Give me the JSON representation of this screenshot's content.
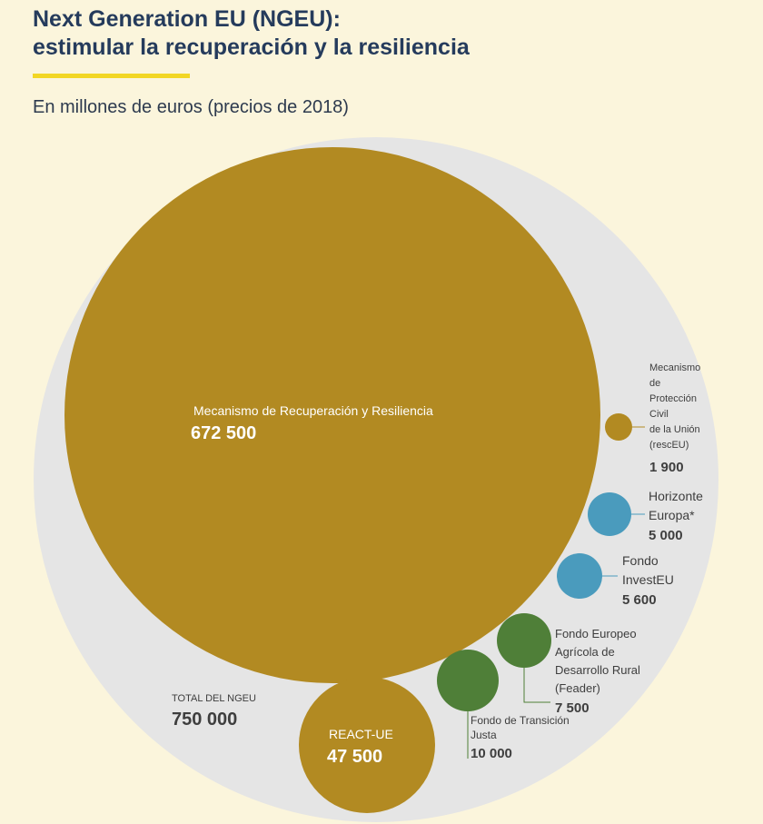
{
  "header": {
    "title_line1": "Next Generation EU (NGEU):",
    "title_line2": "estimular la recuperación y la resiliencia",
    "subtitle": "En millones de euros (precios de 2018)"
  },
  "colors": {
    "background": "#fbf5dc",
    "total_circle": "#e5e5e5",
    "gold": "#b28a22",
    "blue": "#4a9bbd",
    "green": "#4f7f38",
    "accent": "#f2d624",
    "title": "#253b5c"
  },
  "chart_data": {
    "type": "bubble",
    "units": "millones de euros (precios de 2018)",
    "total": {
      "label": "TOTAL DEL NGEU",
      "value": 750000,
      "value_text": "750 000"
    },
    "series": [
      {
        "name_lines": [
          "Mecanismo de Recuperación y Resiliencia"
        ],
        "value": 672500,
        "value_text": "672 500",
        "color": "gold"
      },
      {
        "name_lines": [
          "REACT-UE"
        ],
        "value": 47500,
        "value_text": "47 500",
        "color": "gold"
      },
      {
        "name_lines": [
          "Fondo de Transición",
          "Justa"
        ],
        "value": 10000,
        "value_text": "10 000",
        "color": "green"
      },
      {
        "name_lines": [
          "Fondo Europeo",
          "Agrícola de",
          "Desarrollo Rural",
          "(Feader)"
        ],
        "value": 7500,
        "value_text": "7 500",
        "color": "green"
      },
      {
        "name_lines": [
          "Fondo",
          "InvestEU"
        ],
        "value": 5600,
        "value_text": "5 600",
        "color": "blue"
      },
      {
        "name_lines": [
          "Horizonte",
          "Europa*"
        ],
        "value": 5000,
        "value_text": "5 000",
        "color": "blue"
      },
      {
        "name_lines": [
          "Mecanismo",
          "de",
          "Protección",
          "Civil",
          "de la Unión",
          "(rescEU)"
        ],
        "value": 1900,
        "value_text": "1 900",
        "color": "gold"
      }
    ]
  }
}
